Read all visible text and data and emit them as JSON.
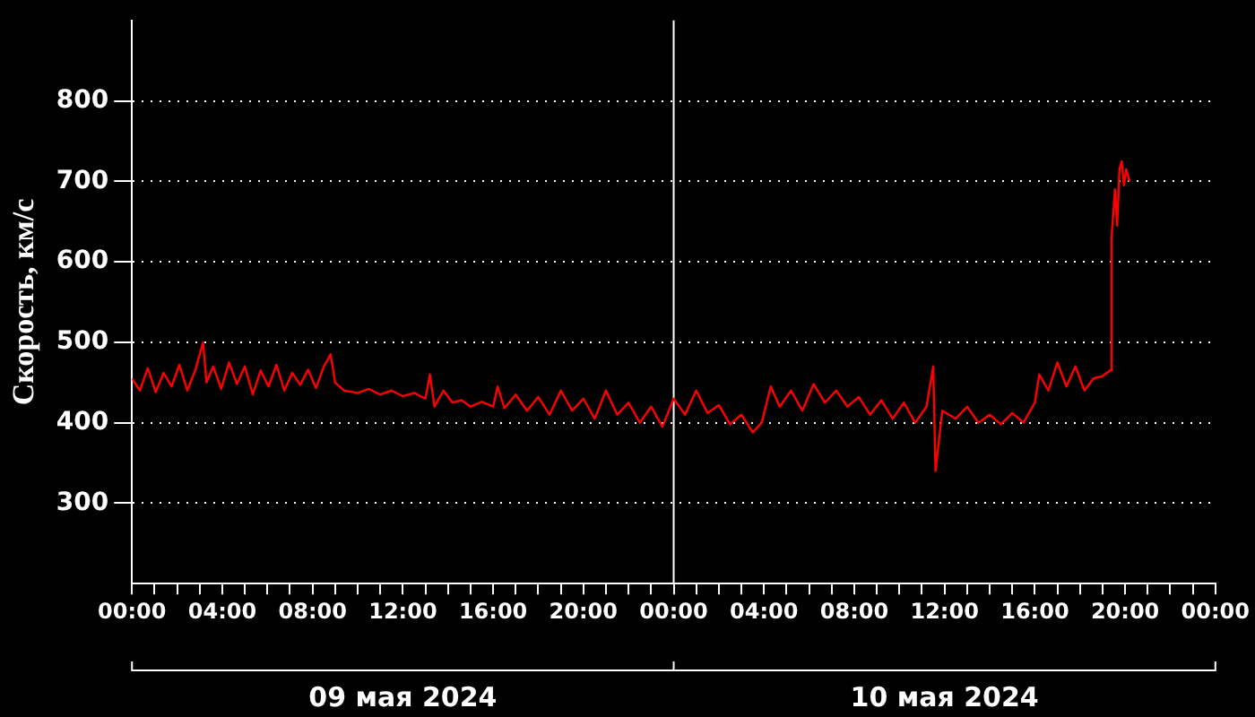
{
  "chart_data": {
    "type": "line",
    "ylabel": "Скорость, км/с",
    "annotations": [
      "09 мая 2024",
      "10 мая 2024"
    ],
    "xlim": [
      "2024-05-09T00:00",
      "2024-05-11T00:00"
    ],
    "xticks": [
      {
        "value": "2024-05-09T00:00",
        "label": "00:00"
      },
      {
        "value": "2024-05-09T01:00",
        "label": null
      },
      {
        "value": "2024-05-09T02:00",
        "label": null
      },
      {
        "value": "2024-05-09T03:00",
        "label": null
      },
      {
        "value": "2024-05-09T04:00",
        "label": "04:00"
      },
      {
        "value": "2024-05-09T05:00",
        "label": null
      },
      {
        "value": "2024-05-09T06:00",
        "label": null
      },
      {
        "value": "2024-05-09T07:00",
        "label": null
      },
      {
        "value": "2024-05-09T08:00",
        "label": "08:00"
      },
      {
        "value": "2024-05-09T09:00",
        "label": null
      },
      {
        "value": "2024-05-09T10:00",
        "label": null
      },
      {
        "value": "2024-05-09T11:00",
        "label": null
      },
      {
        "value": "2024-05-09T12:00",
        "label": "12:00"
      },
      {
        "value": "2024-05-09T13:00",
        "label": null
      },
      {
        "value": "2024-05-09T14:00",
        "label": null
      },
      {
        "value": "2024-05-09T15:00",
        "label": null
      },
      {
        "value": "2024-05-09T16:00",
        "label": "16:00"
      },
      {
        "value": "2024-05-09T17:00",
        "label": null
      },
      {
        "value": "2024-05-09T18:00",
        "label": null
      },
      {
        "value": "2024-05-09T19:00",
        "label": null
      },
      {
        "value": "2024-05-09T20:00",
        "label": "20:00"
      },
      {
        "value": "2024-05-09T21:00",
        "label": null
      },
      {
        "value": "2024-05-09T22:00",
        "label": null
      },
      {
        "value": "2024-05-09T23:00",
        "label": null
      },
      {
        "value": "2024-05-10T00:00",
        "label": "00:00"
      },
      {
        "value": "2024-05-10T01:00",
        "label": null
      },
      {
        "value": "2024-05-10T02:00",
        "label": null
      },
      {
        "value": "2024-05-10T03:00",
        "label": null
      },
      {
        "value": "2024-05-10T04:00",
        "label": "04:00"
      },
      {
        "value": "2024-05-10T05:00",
        "label": null
      },
      {
        "value": "2024-05-10T06:00",
        "label": null
      },
      {
        "value": "2024-05-10T07:00",
        "label": null
      },
      {
        "value": "2024-05-10T08:00",
        "label": "08:00"
      },
      {
        "value": "2024-05-10T09:00",
        "label": null
      },
      {
        "value": "2024-05-10T10:00",
        "label": null
      },
      {
        "value": "2024-05-10T11:00",
        "label": null
      },
      {
        "value": "2024-05-10T12:00",
        "label": "12:00"
      },
      {
        "value": "2024-05-10T13:00",
        "label": null
      },
      {
        "value": "2024-05-10T14:00",
        "label": null
      },
      {
        "value": "2024-05-10T15:00",
        "label": null
      },
      {
        "value": "2024-05-10T16:00",
        "label": "16:00"
      },
      {
        "value": "2024-05-10T17:00",
        "label": null
      },
      {
        "value": "2024-05-10T18:00",
        "label": null
      },
      {
        "value": "2024-05-10T19:00",
        "label": null
      },
      {
        "value": "2024-05-10T20:00",
        "label": "20:00"
      },
      {
        "value": "2024-05-10T21:00",
        "label": null
      },
      {
        "value": "2024-05-10T22:00",
        "label": null
      },
      {
        "value": "2024-05-10T23:00",
        "label": null
      },
      {
        "value": "2024-05-11T00:00",
        "label": "00:00"
      }
    ],
    "ylim": [
      200,
      900
    ],
    "yticks": [
      300,
      400,
      500,
      600,
      700,
      800
    ],
    "grid": "y",
    "legend": false,
    "marker": "none",
    "line_style": "solid",
    "ref_lines": [
      {
        "axis": "x",
        "value": "2024-05-10T00:00",
        "color": "#ffffff"
      }
    ],
    "x": [
      "2024-05-09T00:00",
      "2024-05-09T00:21",
      "2024-05-09T00:42",
      "2024-05-09T01:03",
      "2024-05-09T01:24",
      "2024-05-09T01:45",
      "2024-05-09T02:06",
      "2024-05-09T02:27",
      "2024-05-09T02:48",
      "2024-05-09T03:09",
      "2024-05-09T03:18",
      "2024-05-09T03:36",
      "2024-05-09T03:57",
      "2024-05-09T04:18",
      "2024-05-09T04:39",
      "2024-05-09T05:00",
      "2024-05-09T05:21",
      "2024-05-09T05:42",
      "2024-05-09T06:03",
      "2024-05-09T06:24",
      "2024-05-09T06:45",
      "2024-05-09T07:06",
      "2024-05-09T07:27",
      "2024-05-09T07:48",
      "2024-05-09T08:09",
      "2024-05-09T08:30",
      "2024-05-09T08:48",
      "2024-05-09T09:00",
      "2024-05-09T09:24",
      "2024-05-09T10:00",
      "2024-05-09T10:30",
      "2024-05-09T11:00",
      "2024-05-09T11:30",
      "2024-05-09T12:00",
      "2024-05-09T12:30",
      "2024-05-09T13:00",
      "2024-05-09T13:12",
      "2024-05-09T13:24",
      "2024-05-09T13:48",
      "2024-05-09T14:12",
      "2024-05-09T14:36",
      "2024-05-09T15:00",
      "2024-05-09T15:30",
      "2024-05-09T16:00",
      "2024-05-09T16:12",
      "2024-05-09T16:30",
      "2024-05-09T17:00",
      "2024-05-09T17:30",
      "2024-05-09T18:00",
      "2024-05-09T18:30",
      "2024-05-09T19:00",
      "2024-05-09T19:30",
      "2024-05-09T20:00",
      "2024-05-09T20:30",
      "2024-05-09T21:00",
      "2024-05-09T21:30",
      "2024-05-09T22:00",
      "2024-05-09T22:30",
      "2024-05-09T23:00",
      "2024-05-09T23:30",
      "2024-05-10T00:00",
      "2024-05-10T00:30",
      "2024-05-10T01:00",
      "2024-05-10T01:30",
      "2024-05-10T02:00",
      "2024-05-10T02:30",
      "2024-05-10T03:00",
      "2024-05-10T03:30",
      "2024-05-10T03:54",
      "2024-05-10T04:18",
      "2024-05-10T04:42",
      "2024-05-10T05:12",
      "2024-05-10T05:42",
      "2024-05-10T06:12",
      "2024-05-10T06:42",
      "2024-05-10T07:12",
      "2024-05-10T07:42",
      "2024-05-10T08:12",
      "2024-05-10T08:42",
      "2024-05-10T09:12",
      "2024-05-10T09:42",
      "2024-05-10T10:12",
      "2024-05-10T10:42",
      "2024-05-10T11:12",
      "2024-05-10T11:30",
      "2024-05-10T11:36",
      "2024-05-10T11:54",
      "2024-05-10T12:30",
      "2024-05-10T13:00",
      "2024-05-10T13:30",
      "2024-05-10T14:00",
      "2024-05-10T14:30",
      "2024-05-10T15:00",
      "2024-05-10T15:30",
      "2024-05-10T16:00",
      "2024-05-10T16:12",
      "2024-05-10T16:36",
      "2024-05-10T17:00",
      "2024-05-10T17:24",
      "2024-05-10T17:48",
      "2024-05-10T18:12",
      "2024-05-10T18:36",
      "2024-05-10T19:00",
      "2024-05-10T19:21",
      "2024-05-10T19:24",
      "2024-05-10T19:33",
      "2024-05-10T19:39",
      "2024-05-10T19:45",
      "2024-05-10T19:51",
      "2024-05-10T19:57",
      "2024-05-10T20:03",
      "2024-05-10T20:12"
    ],
    "series": [
      {
        "color": "#ff0000",
        "values": [
          455,
          440,
          468,
          438,
          462,
          445,
          472,
          440,
          465,
          500,
          450,
          470,
          442,
          475,
          448,
          470,
          435,
          465,
          445,
          472,
          440,
          462,
          447,
          466,
          443,
          470,
          485,
          450,
          440,
          437,
          442,
          435,
          440,
          433,
          437,
          430,
          460,
          420,
          440,
          425,
          428,
          420,
          426,
          420,
          445,
          418,
          435,
          415,
          432,
          410,
          440,
          415,
          430,
          405,
          440,
          410,
          425,
          400,
          420,
          395,
          430,
          410,
          440,
          412,
          422,
          398,
          410,
          388,
          400,
          445,
          420,
          440,
          415,
          448,
          425,
          440,
          420,
          432,
          410,
          428,
          405,
          425,
          400,
          420,
          470,
          340,
          415,
          405,
          420,
          400,
          410,
          398,
          412,
          400,
          425,
          460,
          440,
          475,
          445,
          470,
          440,
          455,
          458,
          465,
          630,
          690,
          645,
          715,
          725,
          695,
          715,
          700
        ]
      }
    ]
  }
}
